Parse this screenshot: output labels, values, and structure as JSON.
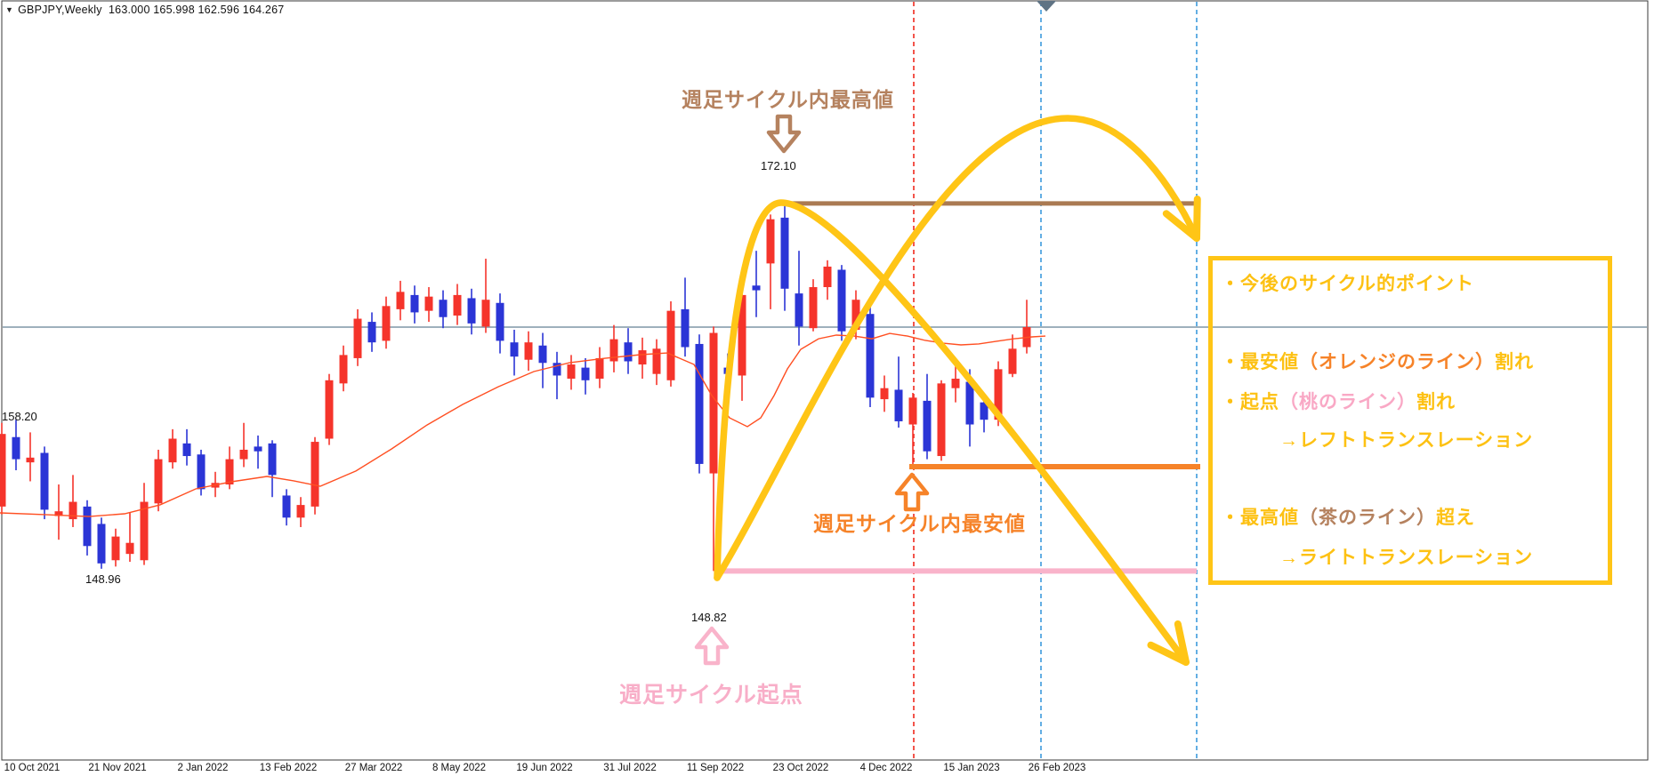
{
  "window": {
    "header": {
      "dropdown_icon": "▼",
      "symbol": "GBPJPY,Weekly",
      "ohlc": "163.000 165.998 162.596 164.267"
    }
  },
  "colors": {
    "bull": "#f5342b",
    "bear": "#2b35d6",
    "ma_line": "#ff4f22",
    "current_price_line": "#7e96a5",
    "high_line_brown": "#aa7a52",
    "low_line_orange": "#f68329",
    "origin_line_pink": "#f9b3ca",
    "dashed_red": "#f02a1e",
    "dashed_blue": "#3d9bdc",
    "yellow_arrow": "#ffc516",
    "box_border": "#ffc516",
    "box_text_gold": "#fdc113",
    "frame": "#3a3a3a"
  },
  "chart_data": {
    "type": "candlestick",
    "title": "GBPJPY,Weekly",
    "last_bar_ohlc": [
      163.0,
      165.998,
      162.596,
      164.267
    ],
    "current_price": 164.267,
    "price_range_visible": [
      136.9,
      184.9
    ],
    "x_axis": [
      "10 Oct 2021",
      "21 Nov 2021",
      "2 Jan 2022",
      "13 Feb 2022",
      "27 Mar 2022",
      "8 May 2022",
      "19 Jun 2022",
      "31 Jul 2022",
      "11 Sep 2022",
      "23 Oct 2022",
      "4 Dec 2022",
      "15 Jan 2023",
      "26 Feb 2023"
    ],
    "levels": {
      "cycle_high": {
        "value": 172.1,
        "label": "172.10",
        "color_name": "brown"
      },
      "cycle_low": {
        "value": 155.43,
        "label": "",
        "color_name": "orange"
      },
      "cycle_origin": {
        "value": 148.82,
        "label": "148.82",
        "color_name": "pink"
      }
    },
    "price_labels": {
      "early_high": "158.20",
      "early_low": "148.96"
    },
    "candles": [
      [
        152.9,
        158.2,
        152.4,
        157.5
      ],
      [
        157.3,
        158.4,
        155.2,
        155.9
      ],
      [
        155.7,
        157.6,
        154.5,
        156.0
      ],
      [
        156.3,
        156.7,
        152.1,
        152.7
      ],
      [
        152.3,
        154.3,
        150.8,
        152.6
      ],
      [
        152.1,
        154.9,
        151.6,
        153.2
      ],
      [
        152.9,
        153.3,
        149.8,
        150.4
      ],
      [
        151.8,
        152.2,
        148.96,
        149.3
      ],
      [
        149.5,
        151.5,
        149.1,
        151.0
      ],
      [
        149.9,
        152.5,
        149.4,
        150.6
      ],
      [
        149.5,
        154.4,
        149.2,
        153.2
      ],
      [
        153.1,
        156.5,
        152.6,
        155.9
      ],
      [
        155.7,
        157.8,
        155.3,
        157.2
      ],
      [
        156.9,
        157.8,
        155.5,
        156.1
      ],
      [
        156.2,
        156.5,
        153.6,
        154.0
      ],
      [
        154.1,
        155.1,
        153.5,
        154.4
      ],
      [
        154.3,
        156.7,
        154.0,
        155.9
      ],
      [
        155.9,
        158.2,
        155.4,
        156.5
      ],
      [
        156.7,
        157.4,
        155.3,
        156.4
      ],
      [
        156.9,
        157.1,
        153.5,
        154.9
      ],
      [
        153.6,
        154.0,
        151.7,
        152.2
      ],
      [
        152.2,
        153.5,
        151.6,
        153.0
      ],
      [
        152.9,
        157.3,
        152.4,
        157.0
      ],
      [
        157.2,
        161.3,
        156.8,
        160.9
      ],
      [
        160.7,
        163.1,
        160.2,
        162.5
      ],
      [
        162.3,
        165.4,
        161.8,
        164.8
      ],
      [
        164.6,
        165.2,
        162.7,
        163.3
      ],
      [
        163.4,
        166.2,
        162.9,
        165.6
      ],
      [
        165.4,
        167.2,
        164.7,
        166.5
      ],
      [
        166.3,
        166.9,
        164.5,
        165.2
      ],
      [
        165.3,
        166.8,
        164.6,
        166.2
      ],
      [
        166.0,
        166.6,
        164.2,
        164.9
      ],
      [
        165.0,
        167.0,
        164.4,
        166.3
      ],
      [
        166.1,
        166.7,
        163.8,
        164.5
      ],
      [
        164.3,
        168.6,
        163.9,
        166.0
      ],
      [
        165.8,
        166.4,
        162.6,
        163.4
      ],
      [
        163.3,
        164.1,
        161.2,
        162.4
      ],
      [
        162.2,
        164.0,
        161.5,
        163.3
      ],
      [
        163.1,
        163.9,
        160.4,
        162.0
      ],
      [
        162.0,
        162.7,
        159.7,
        161.2
      ],
      [
        161.0,
        162.5,
        160.3,
        161.9
      ],
      [
        161.7,
        162.3,
        160.0,
        160.9
      ],
      [
        161.0,
        163.0,
        160.4,
        162.3
      ],
      [
        162.1,
        164.4,
        161.4,
        163.5
      ],
      [
        163.3,
        164.2,
        161.3,
        162.1
      ],
      [
        161.9,
        163.6,
        161.0,
        162.8
      ],
      [
        161.3,
        163.5,
        160.6,
        162.9
      ],
      [
        160.9,
        165.9,
        160.5,
        165.3
      ],
      [
        165.4,
        167.4,
        162.4,
        163.0
      ],
      [
        163.2,
        163.8,
        155.0,
        155.6
      ],
      [
        155.0,
        164.3,
        148.82,
        163.9
      ],
      [
        161.7,
        162.6,
        160.7,
        161.3
      ],
      [
        161.2,
        166.5,
        159.6,
        166.3
      ],
      [
        166.9,
        169.1,
        164.9,
        166.6
      ],
      [
        168.3,
        171.4,
        165.4,
        171.1
      ],
      [
        171.2,
        172.1,
        165.3,
        166.7
      ],
      [
        166.4,
        169.1,
        163.1,
        164.3
      ],
      [
        164.2,
        167.3,
        164.0,
        166.8
      ],
      [
        166.8,
        168.5,
        166.0,
        168.1
      ],
      [
        167.9,
        168.2,
        163.4,
        164.0
      ],
      [
        164.1,
        166.6,
        163.5,
        166.0
      ],
      [
        165.1,
        165.6,
        159.2,
        159.8
      ],
      [
        159.7,
        161.2,
        158.9,
        160.4
      ],
      [
        160.3,
        162.4,
        157.9,
        158.3
      ],
      [
        158.1,
        160.1,
        155.43,
        159.8
      ],
      [
        159.6,
        161.3,
        155.9,
        156.4
      ],
      [
        156.1,
        160.9,
        155.8,
        160.7
      ],
      [
        160.4,
        161.8,
        159.5,
        161.0
      ],
      [
        160.8,
        161.6,
        156.7,
        158.1
      ],
      [
        159.5,
        159.9,
        157.6,
        158.4
      ],
      [
        158.4,
        162.1,
        158.0,
        161.6
      ],
      [
        161.3,
        163.8,
        161.1,
        162.9
      ],
      [
        163.0,
        165.998,
        162.596,
        164.267
      ]
    ],
    "ma_line": [
      [
        0,
        152.5
      ],
      [
        50,
        152.39
      ],
      [
        100,
        152.27
      ],
      [
        140,
        152.44
      ],
      [
        180,
        153.01
      ],
      [
        220,
        154.02
      ],
      [
        260,
        154.47
      ],
      [
        300,
        154.81
      ],
      [
        330,
        154.53
      ],
      [
        360,
        154.19
      ],
      [
        400,
        155.15
      ],
      [
        440,
        156.55
      ],
      [
        480,
        158.07
      ],
      [
        520,
        159.37
      ],
      [
        560,
        160.49
      ],
      [
        600,
        161.45
      ],
      [
        640,
        162.01
      ],
      [
        680,
        162.29
      ],
      [
        720,
        162.52
      ],
      [
        750,
        162.63
      ],
      [
        780,
        161.9
      ],
      [
        800,
        159.93
      ],
      [
        820,
        158.52
      ],
      [
        840,
        157.96
      ],
      [
        855,
        158.52
      ],
      [
        870,
        159.93
      ],
      [
        885,
        161.62
      ],
      [
        900,
        162.86
      ],
      [
        920,
        163.53
      ],
      [
        940,
        163.76
      ],
      [
        960,
        163.7
      ],
      [
        980,
        163.53
      ],
      [
        1000,
        163.87
      ],
      [
        1020,
        163.7
      ],
      [
        1040,
        163.42
      ],
      [
        1060,
        163.25
      ],
      [
        1080,
        163.14
      ],
      [
        1100,
        163.2
      ],
      [
        1120,
        163.37
      ],
      [
        1140,
        163.53
      ],
      [
        1160,
        163.65
      ],
      [
        1175,
        163.7
      ]
    ],
    "legend_position": "none",
    "grid": "off"
  },
  "annotations": {
    "high": {
      "title": "週足サイクル内最高値",
      "price_label": "172.10",
      "arrow": "down"
    },
    "low": {
      "title": "週足サイクル内最安値",
      "arrow": "up"
    },
    "origin": {
      "title": "週足サイクル起点",
      "price_label": "148.82",
      "arrow": "up"
    }
  },
  "box": {
    "lines": [
      {
        "indent": 0,
        "parts": [
          {
            "text": "・今後のサイクル的ポイント",
            "color": "#fdc113"
          }
        ]
      },
      {
        "indent": 0,
        "parts": [
          {
            "text": "・最安値",
            "color": "#fdc113"
          },
          {
            "text": "（オレンジのライン）",
            "color": "#f68329"
          },
          {
            "text": "割れ",
            "color": "#fdc113"
          }
        ]
      },
      {
        "indent": 0,
        "parts": [
          {
            "text": "・起点",
            "color": "#fdc113"
          },
          {
            "text": "（桃のライン）",
            "color": "#f9a8c5"
          },
          {
            "text": "割れ",
            "color": "#fdc113"
          }
        ]
      },
      {
        "indent": 1,
        "parts": [
          {
            "text": "→レフトトランスレーション",
            "color": "#fdc113"
          }
        ]
      },
      {
        "indent": 0,
        "parts": [
          {
            "text": "・最高値",
            "color": "#fdc113"
          },
          {
            "text": "（茶のライン）",
            "color": "#b5825f"
          },
          {
            "text": "超え",
            "color": "#fdc113"
          }
        ]
      },
      {
        "indent": 1,
        "parts": [
          {
            "text": "→ライトトランスレーション",
            "color": "#fdc113"
          }
        ]
      }
    ]
  }
}
